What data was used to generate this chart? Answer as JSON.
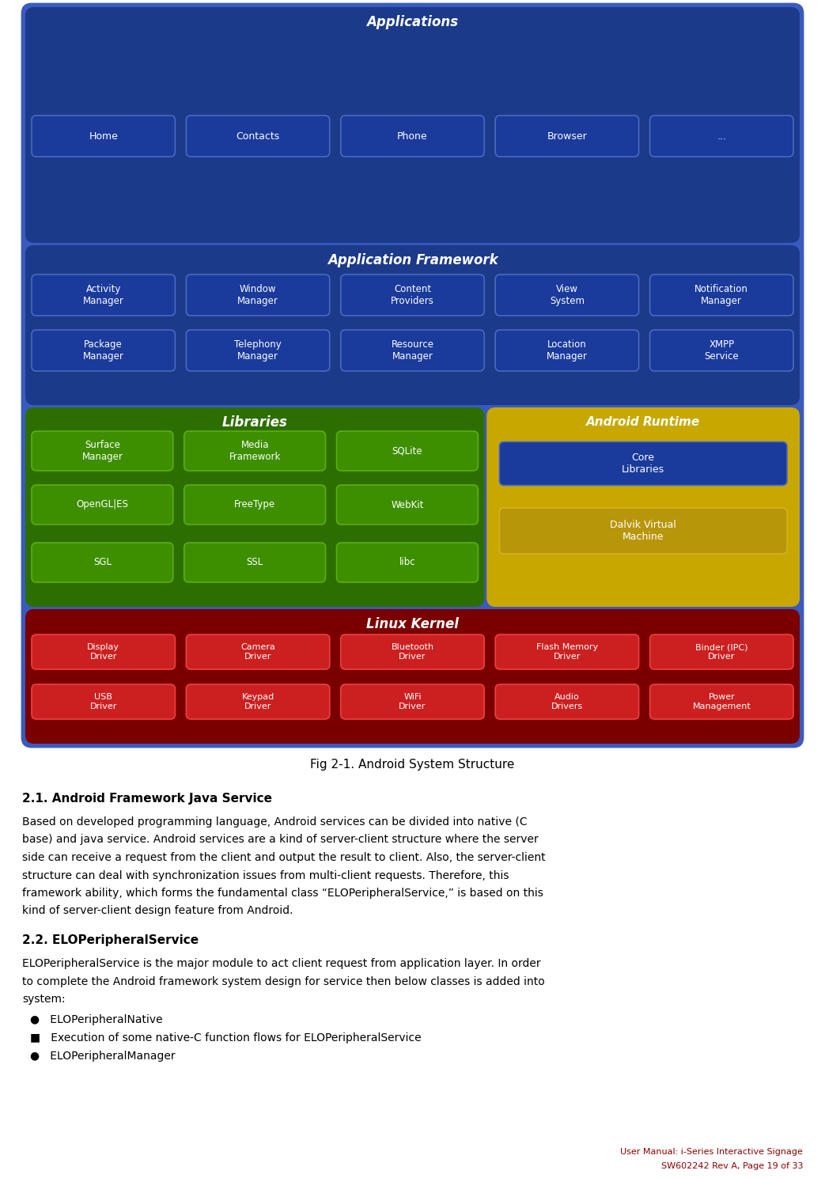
{
  "fig_width": 10.43,
  "fig_height": 14.89,
  "dpi": 100,
  "bg_color": "#ffffff",
  "app_title": "Applications",
  "app_buttons": [
    "Home",
    "Contacts",
    "Phone",
    "Browser",
    "..."
  ],
  "app_bg": "#1c3a8a",
  "app_button_bg": "#1a3a9c",
  "app_button_border": "#4a6abf",
  "af_title": "Application Framework",
  "af_row1": [
    "Activity\nManager",
    "Window\nManager",
    "Content\nProviders",
    "View\nSystem",
    "Notification\nManager"
  ],
  "af_row2": [
    "Package\nManager",
    "Telephony\nManager",
    "Resource\nManager",
    "Location\nManager",
    "XMPP\nService"
  ],
  "af_bg": "#1c3a8a",
  "af_button_bg": "#1a3a9c",
  "af_button_border": "#4a6abf",
  "lib_title": "Libraries",
  "lib_row1": [
    "Surface\nManager",
    "Media\nFramework",
    "SQLite"
  ],
  "lib_row2": [
    "OpenGL|ES",
    "FreeType",
    "WebKit"
  ],
  "lib_row3": [
    "SGL",
    "SSL",
    "libc"
  ],
  "lib_bg": "#2d6e00",
  "lib_button_bg": "#3d8f00",
  "lib_button_border": "#5aaf10",
  "ar_title": "Android Runtime",
  "ar_btn1": "Core\nLibraries",
  "ar_btn1_bg": "#1a3a9c",
  "ar_btn1_border": "#4a6abf",
  "ar_btn2": "Dalvik Virtual\nMachine",
  "ar_btn2_bg": "#b8960a",
  "ar_btn2_border": "#d8b020",
  "ar_bg": "#c8a800",
  "lk_title": "Linux Kernel",
  "lk_row1": [
    "Display\nDriver",
    "Camera\nDriver",
    "Bluetooth\nDriver",
    "Flash Memory\nDriver",
    "Binder (IPC)\nDriver"
  ],
  "lk_row2": [
    "USB\nDriver",
    "Keypad\nDriver",
    "WiFi\nDriver",
    "Audio\nDrivers",
    "Power\nManagement"
  ],
  "lk_bg": "#7a0000",
  "lk_button_bg": "#cc2020",
  "lk_button_border": "#ee4040",
  "outer_border": "#3a5abf",
  "white": "#ffffff",
  "black": "#000000",
  "red_footer": "#8b0000",
  "fig_caption": "Fig 2-1. Android System Structure",
  "heading_21": "2.1. Android Framework Java Service",
  "para_21_lines": [
    "Based on developed programming language, Android services can be divided into native (C",
    "base) and java service. Android services are a kind of server-client structure where the server",
    "side can receive a request from the client and output the result to client. Also, the server-client",
    "structure can deal with synchronization issues from multi-client requests. Therefore, this",
    "framework ability, which forms the fundamental class “ELOPeripheralService,” is based on this",
    "kind of server-client design feature from Android."
  ],
  "heading_22": "2.2. ELOPeripheralService",
  "para_22_lines": [
    "ELOPeripheralService is the major module to act client request from application layer. In order",
    "to complete the Android framework system design for service then below classes is added into",
    "system:"
  ],
  "bullet1": "●   ELOPeripheralNative",
  "bullet2": "■   Execution of some native-C function flows for ELOPeripheralService",
  "bullet3": "●   ELOPeripheralManager",
  "footer_line1": "User Manual: i-Series Interactive Signage",
  "footer_line2": "SW602242 Rev A, Page 19 of 33"
}
